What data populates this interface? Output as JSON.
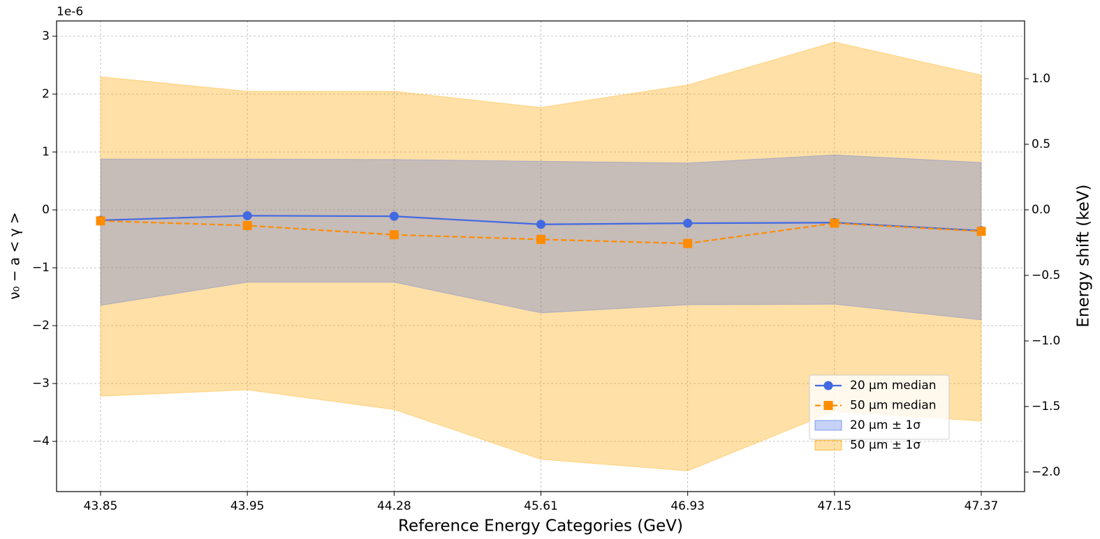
{
  "chart_data": {
    "type": "line",
    "xlabel": "Reference Energy Categories (GeV)",
    "ylabel": "ν₀ − a < γ >",
    "y2label": "Energy shift (keV)",
    "offset_text": "1e-6",
    "categories": [
      "43.85",
      "43.95",
      "44.28",
      "45.61",
      "46.93",
      "47.15",
      "47.37"
    ],
    "ylim": [
      -4.867,
      3.265
    ],
    "yticks": [
      {
        "value": -4,
        "label": "−4"
      },
      {
        "value": -3,
        "label": "−3"
      },
      {
        "value": -2,
        "label": "−2"
      },
      {
        "value": -1,
        "label": "−1"
      },
      0,
      1,
      2,
      3
    ],
    "y2lim": [
      -2.149,
      1.441
    ],
    "y2ticks": [
      {
        "value": -2,
        "label": "−2.0"
      },
      {
        "value": -1.5,
        "label": "−1.5"
      },
      {
        "value": -1,
        "label": "−1.0"
      },
      {
        "value": -0.5,
        "label": "−0.5"
      },
      {
        "value": 0,
        "label": "0.0"
      },
      0.5,
      {
        "value": 1,
        "label": "1.0"
      }
    ],
    "grid": true,
    "legend_loc": "lower right",
    "bands": [
      {
        "name": "20 µm ± 1σ",
        "color": "#4169e1",
        "opacity": 0.3,
        "upper": [
          0.88,
          0.88,
          0.87,
          0.84,
          0.81,
          0.95,
          0.82
        ],
        "lower": [
          -1.65,
          -1.25,
          -1.25,
          -1.78,
          -1.64,
          -1.63,
          -1.9
        ]
      },
      {
        "name": "50 µm ± 1σ",
        "color": "#ffa500",
        "opacity": 0.35,
        "upper": [
          2.3,
          2.05,
          2.05,
          1.77,
          2.16,
          2.9,
          2.33
        ],
        "lower": [
          -3.22,
          -3.11,
          -3.45,
          -4.31,
          -4.51,
          -3.48,
          -3.65
        ]
      }
    ],
    "series": [
      {
        "name": "20 µm median",
        "color": "#4169e1",
        "marker": "circle",
        "dash": "solid",
        "values": [
          -0.18,
          -0.1,
          -0.11,
          -0.25,
          -0.23,
          -0.22,
          -0.36
        ]
      },
      {
        "name": "50 µm median",
        "color": "#ff8c00",
        "marker": "square",
        "dash": "dashed",
        "values": [
          -0.19,
          -0.27,
          -0.43,
          -0.51,
          -0.58,
          -0.23,
          -0.37
        ]
      }
    ]
  }
}
